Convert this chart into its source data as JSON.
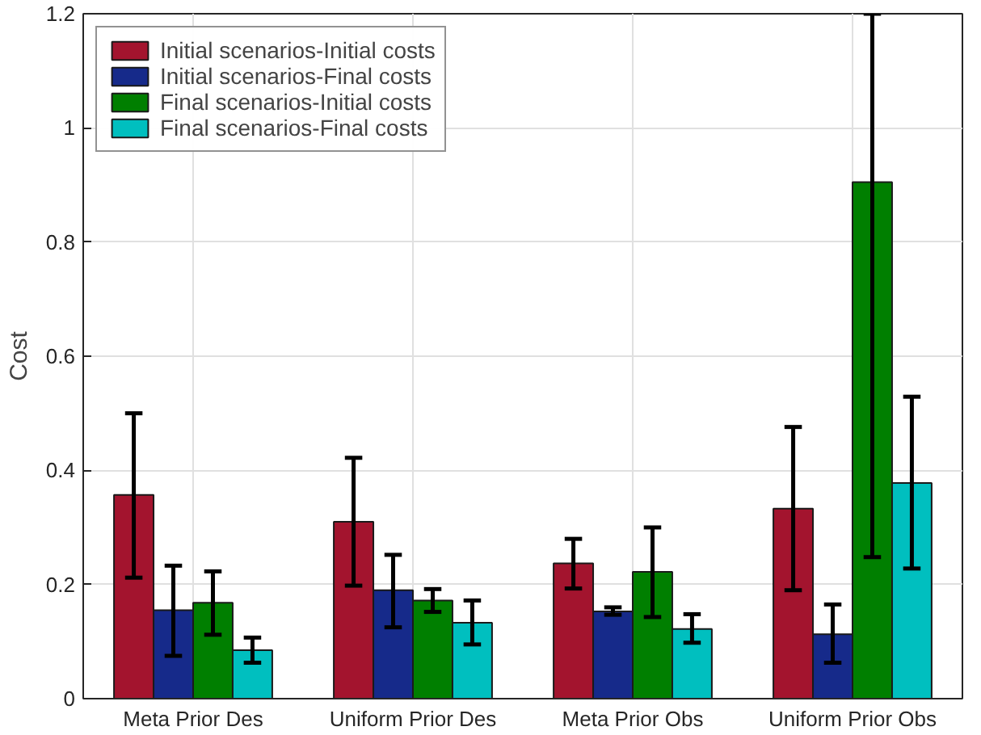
{
  "chart_data": {
    "type": "bar",
    "ylabel": "Cost",
    "categories": [
      "Meta Prior Des",
      "Uniform Prior Des",
      "Meta Prior Obs",
      "Uniform Prior Obs"
    ],
    "series": [
      {
        "name": "Initial scenarios-Initial costs",
        "color": "#a3142e",
        "values": [
          0.357,
          0.31,
          0.237,
          0.333
        ],
        "errors": [
          [
            0.212,
            0.5
          ],
          [
            0.198,
            0.422
          ],
          [
            0.193,
            0.28
          ],
          [
            0.19,
            0.476
          ]
        ]
      },
      {
        "name": "Initial scenarios-Final costs",
        "color": "#162a8a",
        "values": [
          0.155,
          0.19,
          0.153,
          0.113
        ],
        "errors": [
          [
            0.075,
            0.233
          ],
          [
            0.125,
            0.252
          ],
          [
            0.147,
            0.16
          ],
          [
            0.063,
            0.165
          ]
        ]
      },
      {
        "name": "Final scenarios-Initial costs",
        "color": "#007f00",
        "values": [
          0.168,
          0.172,
          0.222,
          0.905
        ],
        "errors": [
          [
            0.112,
            0.223
          ],
          [
            0.152,
            0.192
          ],
          [
            0.143,
            0.3
          ],
          [
            0.248,
            1.2
          ]
        ]
      },
      {
        "name": "Final scenarios-Final costs",
        "color": "#00bfbf",
        "values": [
          0.085,
          0.133,
          0.122,
          0.378
        ],
        "errors": [
          [
            0.063,
            0.107
          ],
          [
            0.095,
            0.172
          ],
          [
            0.098,
            0.148
          ],
          [
            0.228,
            0.529
          ]
        ]
      }
    ],
    "ylim": [
      0,
      1.2
    ],
    "yticks": [
      0,
      0.2,
      0.4,
      0.6,
      0.8,
      1,
      1.2
    ],
    "grid": true,
    "legend": "top left"
  }
}
